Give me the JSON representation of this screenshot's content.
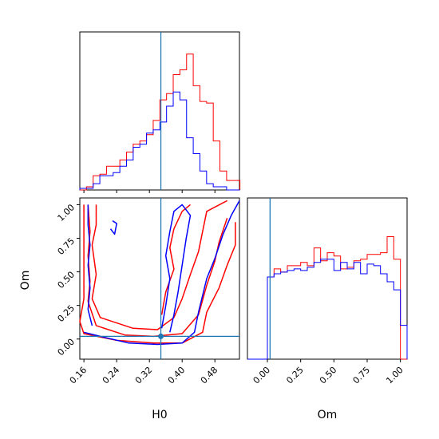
{
  "chart_data": {
    "type": "corner",
    "params": [
      "H0",
      "Om"
    ],
    "xlabel_h0": "H0",
    "xlabel_om": "Om",
    "ylabel_om": "Om",
    "h0_range": [
      0.15,
      0.54
    ],
    "om_range": [
      -0.15,
      1.05
    ],
    "h0_ticks": [
      "0.16",
      "0.24",
      "0.32",
      "0.40",
      "0.48"
    ],
    "om_ticks": [
      "0.00",
      "0.25",
      "0.50",
      "0.75",
      "1.00"
    ],
    "truth": {
      "H0": 0.348,
      "Om": 0.02
    },
    "colors": {
      "red": "#ff0000",
      "blue": "#0000ff",
      "truth": "#1f77b4"
    },
    "h0_hist": {
      "bin_start": 0.15,
      "bin_width": 0.0163,
      "red": [
        0.0,
        0.02,
        0.09,
        0.1,
        0.15,
        0.15,
        0.19,
        0.24,
        0.29,
        0.31,
        0.35,
        0.44,
        0.57,
        0.61,
        0.73,
        0.76,
        0.86,
        0.66,
        0.56,
        0.55,
        0.31,
        0.12,
        0.06,
        0.06
      ],
      "blue": [
        0.01,
        0.01,
        0.04,
        0.09,
        0.09,
        0.11,
        0.15,
        0.19,
        0.27,
        0.29,
        0.36,
        0.38,
        0.43,
        0.53,
        0.62,
        0.57,
        0.33,
        0.23,
        0.12,
        0.04,
        0.02,
        0.02,
        0.0,
        0.0
      ]
    },
    "om_hist": {
      "bin_start": -0.15,
      "bin_width": 0.05,
      "red": [
        0.0,
        0.0,
        0.0,
        0.51,
        0.56,
        0.54,
        0.58,
        0.58,
        0.6,
        0.58,
        0.69,
        0.61,
        0.66,
        0.64,
        0.56,
        0.57,
        0.61,
        0.62,
        0.65,
        0.65,
        0.66,
        0.76,
        0.62,
        0.0
      ],
      "blue": [
        0.0,
        0.0,
        0.0,
        0.51,
        0.53,
        0.54,
        0.55,
        0.56,
        0.55,
        0.57,
        0.6,
        0.62,
        0.62,
        0.55,
        0.6,
        0.56,
        0.6,
        0.53,
        0.59,
        0.58,
        0.53,
        0.48,
        0.43,
        0.21
      ]
    },
    "contours": [
      {
        "color": "red",
        "points": [
          [
            0.16,
            1.0
          ],
          [
            0.16,
            0.3
          ],
          [
            0.15,
            0.13
          ],
          [
            0.16,
            0.04
          ],
          [
            0.24,
            -0.01
          ],
          [
            0.33,
            -0.03
          ],
          [
            0.4,
            -0.03
          ],
          [
            0.45,
            0.05
          ],
          [
            0.46,
            0.2
          ],
          [
            0.49,
            0.38
          ],
          [
            0.51,
            0.55
          ],
          [
            0.53,
            0.7
          ],
          [
            0.53,
            0.87
          ]
        ]
      },
      {
        "color": "red",
        "points": [
          [
            0.17,
            1.0
          ],
          [
            0.175,
            0.8
          ],
          [
            0.17,
            0.62
          ],
          [
            0.175,
            0.43
          ],
          [
            0.17,
            0.28
          ],
          [
            0.19,
            0.1
          ],
          [
            0.26,
            0.03
          ],
          [
            0.33,
            0.02
          ],
          [
            0.4,
            0.04
          ],
          [
            0.44,
            0.18
          ],
          [
            0.46,
            0.4
          ],
          [
            0.48,
            0.58
          ],
          [
            0.49,
            0.72
          ],
          [
            0.51,
            0.9
          ]
        ]
      },
      {
        "color": "red",
        "points": [
          [
            0.19,
            1.0
          ],
          [
            0.19,
            0.85
          ],
          [
            0.18,
            0.7
          ],
          [
            0.19,
            0.48
          ],
          [
            0.18,
            0.3
          ],
          [
            0.2,
            0.16
          ],
          [
            0.28,
            0.08
          ],
          [
            0.34,
            0.07
          ],
          [
            0.38,
            0.16
          ],
          [
            0.4,
            0.3
          ],
          [
            0.42,
            0.48
          ],
          [
            0.44,
            0.65
          ],
          [
            0.45,
            0.8
          ],
          [
            0.46,
            0.95
          ],
          [
            0.51,
            1.03
          ]
        ]
      },
      {
        "color": "red",
        "points": [
          [
            0.35,
            0.18
          ],
          [
            0.36,
            0.35
          ],
          [
            0.38,
            0.52
          ],
          [
            0.37,
            0.68
          ],
          [
            0.38,
            0.82
          ],
          [
            0.4,
            0.95
          ],
          [
            0.42,
            1.0
          ]
        ]
      },
      {
        "color": "blue",
        "points": [
          [
            0.16,
            0.05
          ],
          [
            0.2,
            0.02
          ],
          [
            0.27,
            -0.03
          ],
          [
            0.34,
            -0.04
          ],
          [
            0.4,
            -0.03
          ],
          [
            0.43,
            0.05
          ],
          [
            0.44,
            0.2
          ],
          [
            0.46,
            0.45
          ],
          [
            0.48,
            0.6
          ],
          [
            0.5,
            0.78
          ],
          [
            0.52,
            0.92
          ],
          [
            0.54,
            1.03
          ]
        ]
      },
      {
        "color": "blue",
        "points": [
          [
            0.17,
            1.0
          ],
          [
            0.17,
            0.85
          ],
          [
            0.175,
            0.7
          ],
          [
            0.17,
            0.55
          ],
          [
            0.175,
            0.38
          ],
          [
            0.17,
            0.22
          ],
          [
            0.18,
            0.1
          ]
        ]
      },
      {
        "color": "blue",
        "points": [
          [
            0.35,
            0.08
          ],
          [
            0.36,
            0.25
          ],
          [
            0.37,
            0.45
          ],
          [
            0.36,
            0.62
          ],
          [
            0.37,
            0.8
          ],
          [
            0.38,
            0.95
          ],
          [
            0.4,
            1.0
          ],
          [
            0.42,
            0.92
          ],
          [
            0.41,
            0.75
          ],
          [
            0.4,
            0.55
          ],
          [
            0.39,
            0.35
          ],
          [
            0.38,
            0.18
          ],
          [
            0.37,
            0.05
          ]
        ]
      },
      {
        "color": "blue",
        "points": [
          [
            0.225,
            0.82
          ],
          [
            0.235,
            0.78
          ],
          [
            0.24,
            0.86
          ],
          [
            0.23,
            0.88
          ]
        ]
      }
    ]
  }
}
